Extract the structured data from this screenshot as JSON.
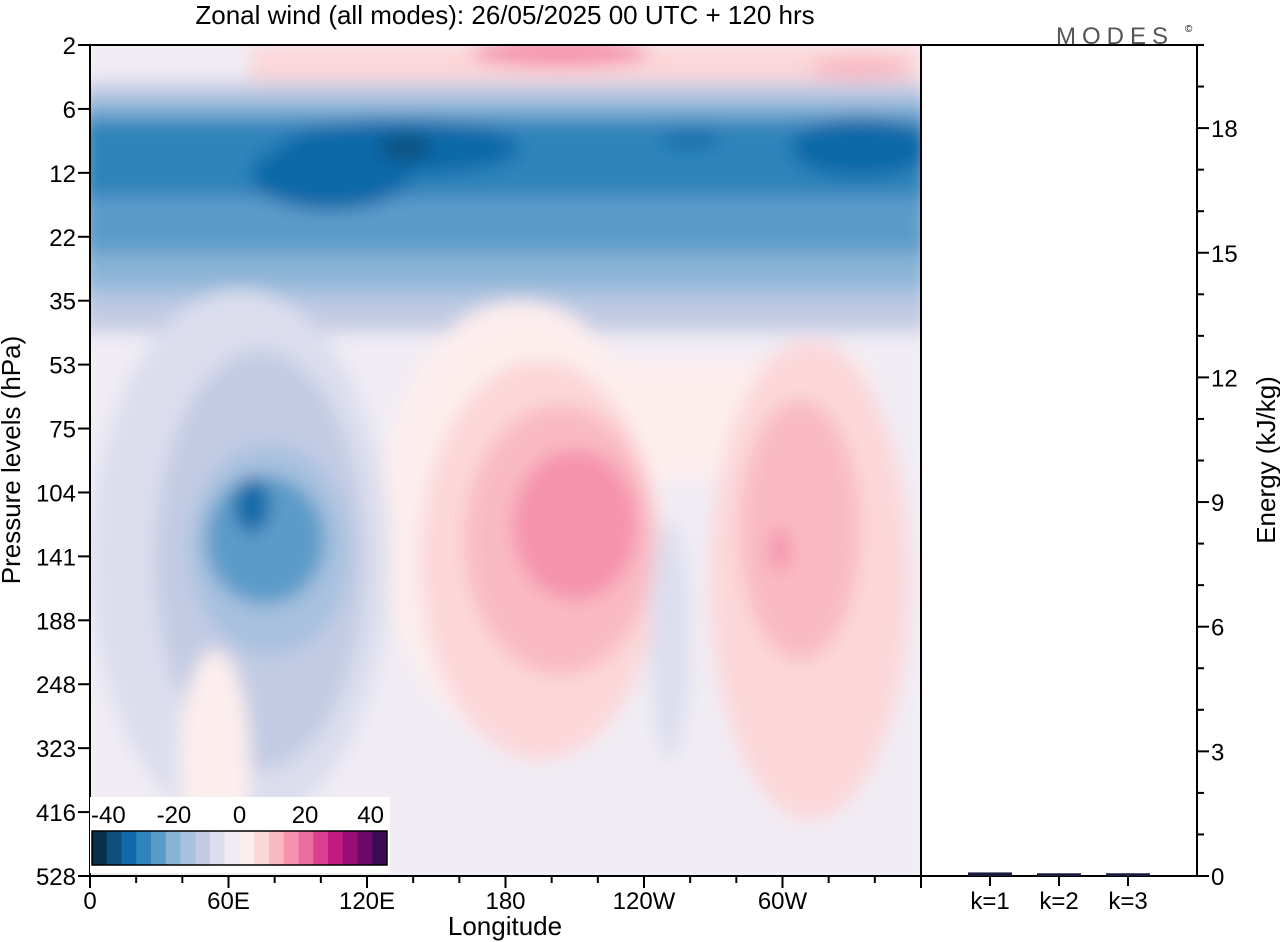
{
  "title": "Zonal wind (all modes):  26/05/2025  00 UTC  + 120 hrs",
  "brand": "MODES",
  "brand_mark": "©",
  "chart_data": [
    {
      "type": "heatmap",
      "title": "Zonal wind (all modes):  26/05/2025  00 UTC  + 120 hrs",
      "xlabel": "Longitude",
      "ylabel": "Pressure levels (hPa)",
      "x_ticks": [
        "0",
        "60E",
        "120E",
        "180",
        "120W",
        "60W"
      ],
      "x_tick_degrees": [
        0,
        60,
        120,
        180,
        240,
        300
      ],
      "x_range": [
        0,
        360
      ],
      "y_ticks": [
        2,
        6,
        12,
        22,
        35,
        53,
        75,
        104,
        141,
        188,
        248,
        323,
        416,
        528
      ],
      "y_scale": "pressure levels (equally spaced)",
      "colorbar": {
        "ticks": [
          "-40",
          "-20",
          "0",
          "20",
          "40"
        ],
        "range": [
          -45,
          45
        ],
        "step": 5,
        "colors": [
          "#0a2f4d",
          "#0d4f7d",
          "#1169a8",
          "#2f84bb",
          "#5b9bc9",
          "#88b2d6",
          "#a7c1df",
          "#c2cbe3",
          "#dcdeee",
          "#f1ecf4",
          "#fdeeee",
          "#fcd7d9",
          "#f9b9c3",
          "#f592ad",
          "#ec6ea1",
          "#dd3f92",
          "#c31a80",
          "#980c75",
          "#6c0a6b",
          "#3d0a54"
        ]
      },
      "features": [
        {
          "region": "stratospheric easterly jet",
          "lon_range": [
            0,
            360
          ],
          "pressure_range": [
            6,
            35
          ],
          "min_wind": -40
        },
        {
          "region": "easterly core near 60E",
          "lon": 65,
          "pressure": 120,
          "min_wind": -25
        },
        {
          "region": "westerly core near 180",
          "lon": 190,
          "pressure": 150,
          "max_wind": 20
        },
        {
          "region": "westerly near 60W",
          "lon": 295,
          "pressure": 150,
          "max_wind": 15
        },
        {
          "region": "upper westerlies",
          "lon_range": [
            60,
            320
          ],
          "pressure_range": [
            2,
            5
          ],
          "max_wind": 20
        }
      ]
    },
    {
      "type": "bar",
      "categories": [
        "k=1",
        "k=2",
        "k=3"
      ],
      "values": [
        0.05,
        0.03,
        0.03
      ],
      "ylabel": "Energy (kJ/kg)",
      "ylim": [
        0,
        20
      ],
      "y_ticks": [
        0,
        3,
        6,
        9,
        12,
        15,
        18
      ]
    }
  ]
}
